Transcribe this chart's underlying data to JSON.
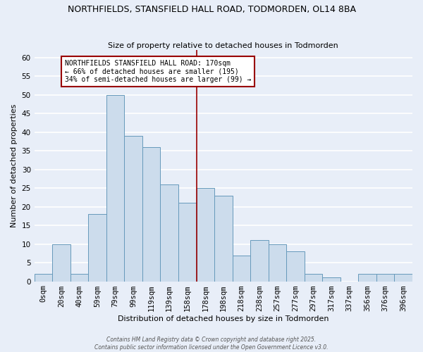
{
  "title": "NORTHFIELDS, STANSFIELD HALL ROAD, TODMORDEN, OL14 8BA",
  "subtitle": "Size of property relative to detached houses in Todmorden",
  "xlabel": "Distribution of detached houses by size in Todmorden",
  "ylabel": "Number of detached properties",
  "bin_labels": [
    "0sqm",
    "20sqm",
    "40sqm",
    "59sqm",
    "79sqm",
    "99sqm",
    "119sqm",
    "139sqm",
    "158sqm",
    "178sqm",
    "198sqm",
    "218sqm",
    "238sqm",
    "257sqm",
    "277sqm",
    "297sqm",
    "317sqm",
    "337sqm",
    "356sqm",
    "376sqm",
    "396sqm"
  ],
  "bar_heights": [
    2,
    10,
    2,
    18,
    50,
    39,
    36,
    26,
    21,
    25,
    23,
    7,
    11,
    10,
    8,
    2,
    1,
    0,
    2,
    2,
    2
  ],
  "bar_color": "#ccdcec",
  "bar_edge_color": "#6699bb",
  "vline_x_label": "158sqm",
  "vline_color": "#990000",
  "annotation_text": "NORTHFIELDS STANSFIELD HALL ROAD: 170sqm\n← 66% of detached houses are smaller (195)\n34% of semi-detached houses are larger (99) →",
  "annotation_box_facecolor": "#ffffff",
  "annotation_box_edgecolor": "#990000",
  "ylim": [
    0,
    62
  ],
  "yticks": [
    0,
    5,
    10,
    15,
    20,
    25,
    30,
    35,
    40,
    45,
    50,
    55,
    60
  ],
  "background_color": "#e8eef8",
  "plot_bg_color": "#e8eef8",
  "grid_color": "#ffffff",
  "title_fontsize": 9,
  "subtitle_fontsize": 8,
  "xlabel_fontsize": 8,
  "ylabel_fontsize": 8,
  "tick_fontsize": 7.5,
  "annotation_fontsize": 7,
  "footer_line1": "Contains HM Land Registry data © Crown copyright and database right 2025.",
  "footer_line2": "Contains public sector information licensed under the Open Government Licence v3.0."
}
